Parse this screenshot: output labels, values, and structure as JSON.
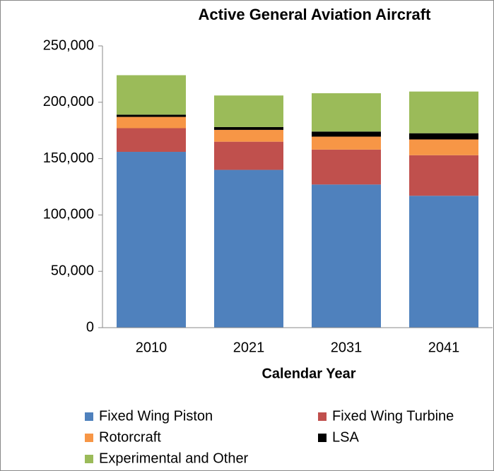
{
  "chart_data": {
    "type": "stacked_bar",
    "title": "Active General Aviation Aircraft",
    "x_label": "Calendar Year",
    "categories": [
      "2010",
      "2021",
      "2031",
      "2041"
    ],
    "series": [
      {
        "name": "Fixed Wing Piston",
        "color": "#4f81bd",
        "values": [
          156000,
          140000,
          127000,
          117000
        ]
      },
      {
        "name": "Fixed Wing Turbine",
        "color": "#c0504d",
        "values": [
          21000,
          25000,
          31000,
          36000
        ]
      },
      {
        "name": "Rotorcraft",
        "color": "#f79646",
        "values": [
          10000,
          10500,
          11500,
          14000
        ]
      },
      {
        "name": "LSA",
        "color": "#000000",
        "values": [
          2000,
          2500,
          4500,
          5500
        ]
      },
      {
        "name": "Experimental and Other",
        "color": "#9bbb59",
        "values": [
          35000,
          28000,
          34000,
          37000
        ]
      }
    ],
    "ylim": [
      0,
      250000
    ],
    "yticks": [
      0,
      {
        "value": 50000,
        "label": "50,000"
      },
      {
        "value": 100000,
        "label": "100,000"
      },
      {
        "value": 150000,
        "label": "150,000"
      },
      {
        "value": 200000,
        "label": "200,000"
      },
      {
        "value": 250000,
        "label": "250,000"
      }
    ],
    "grid": false,
    "legend": "bottom"
  }
}
